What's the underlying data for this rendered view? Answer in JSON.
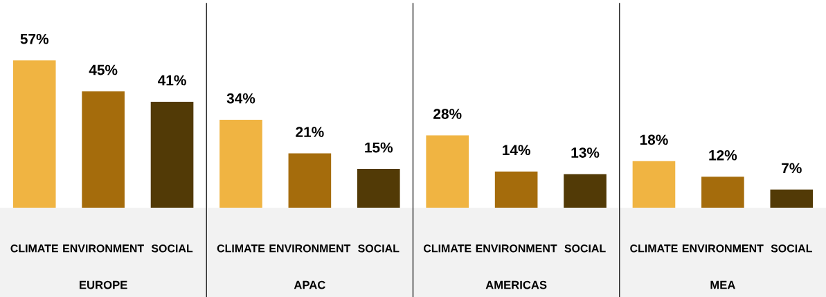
{
  "chart_data": {
    "type": "bar",
    "categories": [
      "CLIMATE",
      "ENVIRONMENT",
      "SOCIAL",
      "CLIMATE",
      "ENVIRONMENT",
      "SOCIAL",
      "CLIMATE",
      "ENVIRONMENT",
      "SOCIAL",
      "CLIMATE",
      "ENVIRONMENT",
      "SOCIAL"
    ],
    "values": [
      57,
      45,
      41,
      34,
      21,
      15,
      28,
      14,
      13,
      18,
      12,
      7
    ],
    "value_labels": [
      "57%",
      "45%",
      "41%",
      "34%",
      "21%",
      "15%",
      "28%",
      "14%",
      "13%",
      "18%",
      "12%",
      "7%"
    ],
    "colors": [
      "#f0b442",
      "#a56c0c",
      "#523a06",
      "#f0b442",
      "#a56c0c",
      "#523a06",
      "#f0b442",
      "#a56c0c",
      "#523a06",
      "#f0b442",
      "#a56c0c",
      "#523a06"
    ],
    "annotations": [
      "EUROPE",
      "APAC",
      "AMERICAS",
      "MEA"
    ],
    "grid": false,
    "legend": false
  }
}
